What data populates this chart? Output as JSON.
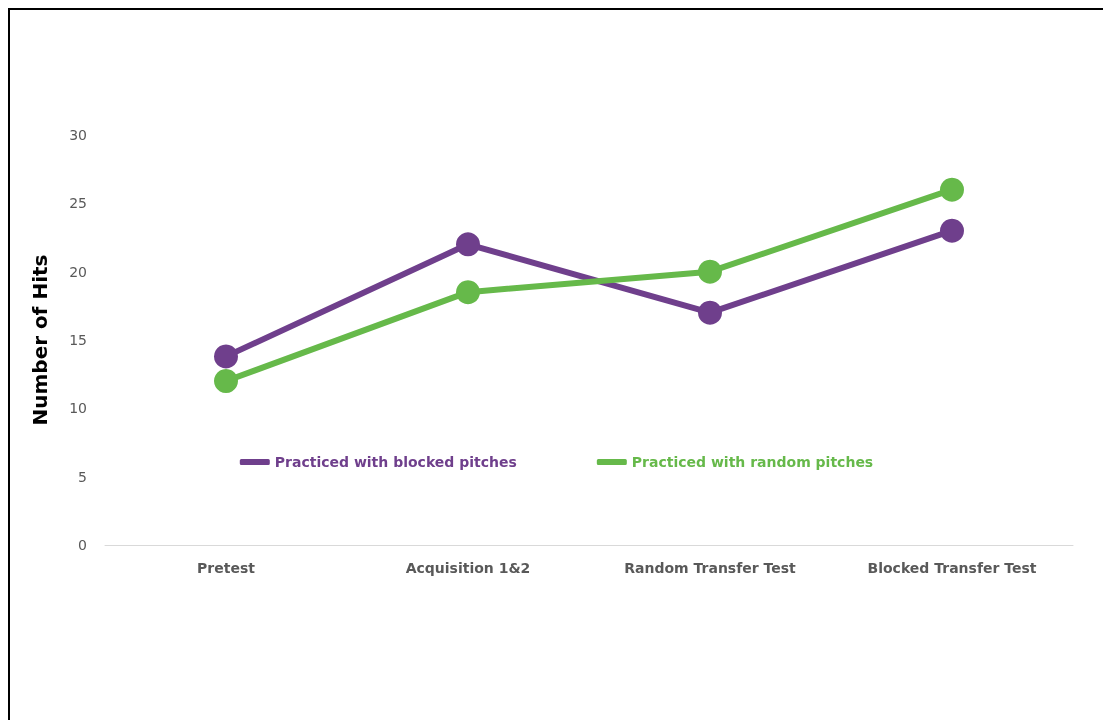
{
  "chart_data": {
    "type": "line",
    "ylabel": "Number of Hits",
    "categories": [
      "Pretest",
      "Acquisition 1&2",
      "Random Transfer Test",
      "Blocked Transfer Test"
    ],
    "series": [
      {
        "name": "Practiced with blocked pitches",
        "color": "#6f3f8c",
        "values": [
          13.8,
          22,
          17,
          23
        ]
      },
      {
        "name": "Practiced with random pitches",
        "color": "#66b94a",
        "values": [
          12,
          18.5,
          20,
          26
        ]
      }
    ],
    "ylim": [
      0,
      30
    ],
    "yticks": [
      0,
      5,
      10,
      15,
      20,
      25,
      30
    ],
    "grid": false,
    "legend": "bottom",
    "marker": "circle",
    "line_style": "solid"
  }
}
